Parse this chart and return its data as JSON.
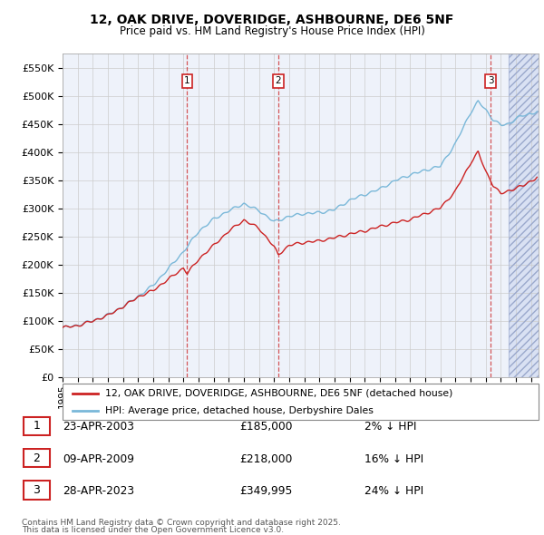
{
  "title_line1": "12, OAK DRIVE, DOVERIDGE, ASHBOURNE, DE6 5NF",
  "title_line2": "Price paid vs. HM Land Registry's House Price Index (HPI)",
  "ylabel_ticks": [
    "£0",
    "£50K",
    "£100K",
    "£150K",
    "£200K",
    "£250K",
    "£300K",
    "£350K",
    "£400K",
    "£450K",
    "£500K",
    "£550K"
  ],
  "ytick_values": [
    0,
    50000,
    100000,
    150000,
    200000,
    250000,
    300000,
    350000,
    400000,
    450000,
    500000,
    550000
  ],
  "ylim": [
    0,
    575000
  ],
  "xlim_start": 1995.0,
  "xlim_end": 2026.5,
  "hpi_color": "#7ab8d9",
  "price_color": "#cc2222",
  "sale_line_color": "#cc2222",
  "background_color": "#ffffff",
  "plot_bg_color": "#eef2fa",
  "grid_color": "#cccccc",
  "legend_label_price": "12, OAK DRIVE, DOVERIDGE, ASHBOURNE, DE6 5NF (detached house)",
  "legend_label_hpi": "HPI: Average price, detached house, Derbyshire Dales",
  "sales": [
    {
      "num": 1,
      "date": "23-APR-2003",
      "price": 185000,
      "hpi_pct": "2%",
      "year": 2003.25
    },
    {
      "num": 2,
      "date": "09-APR-2009",
      "price": 218000,
      "hpi_pct": "16%",
      "year": 2009.27
    },
    {
      "num": 3,
      "date": "28-APR-2023",
      "price": 349995,
      "hpi_pct": "24%",
      "year": 2023.32
    }
  ],
  "footnote_line1": "Contains HM Land Registry data © Crown copyright and database right 2025.",
  "footnote_line2": "This data is licensed under the Open Government Licence v3.0.",
  "shade_start": 2024.5,
  "shade_end": 2026.5,
  "hpi_waypoints_x": [
    1995,
    1996,
    1997,
    1998,
    1999,
    2000,
    2001,
    2002,
    2003,
    2004,
    2005,
    2006,
    2007,
    2008,
    2009,
    2010,
    2011,
    2012,
    2013,
    2014,
    2015,
    2016,
    2017,
    2018,
    2019,
    2020,
    2021,
    2022,
    2022.5,
    2023,
    2023.5,
    2024,
    2024.5,
    2025,
    2025.5,
    2026,
    2026.4
  ],
  "hpi_waypoints_y": [
    88000,
    92000,
    100000,
    110000,
    125000,
    143000,
    163000,
    192000,
    222000,
    258000,
    280000,
    295000,
    308000,
    295000,
    275000,
    285000,
    290000,
    292000,
    298000,
    315000,
    325000,
    335000,
    350000,
    360000,
    368000,
    375000,
    415000,
    470000,
    490000,
    475000,
    458000,
    448000,
    450000,
    460000,
    465000,
    468000,
    472000
  ],
  "price_waypoints_x": [
    1995,
    1996,
    1997,
    1998,
    1999,
    2000,
    2001,
    2002,
    2003,
    2003.25,
    2004,
    2005,
    2006,
    2007,
    2008,
    2009,
    2009.27,
    2010,
    2011,
    2012,
    2013,
    2014,
    2015,
    2016,
    2017,
    2018,
    2019,
    2020,
    2021,
    2022,
    2022.5,
    2023,
    2023.32,
    2023.5,
    2024,
    2024.5,
    2025,
    2025.5,
    2026,
    2026.4
  ],
  "price_waypoints_y": [
    88000,
    92000,
    100000,
    110000,
    125000,
    143000,
    155000,
    175000,
    195000,
    185000,
    210000,
    235000,
    260000,
    280000,
    265000,
    232000,
    218000,
    235000,
    240000,
    242000,
    248000,
    255000,
    260000,
    268000,
    275000,
    280000,
    290000,
    300000,
    330000,
    380000,
    400000,
    365000,
    349995,
    340000,
    325000,
    330000,
    335000,
    340000,
    348000,
    355000
  ]
}
